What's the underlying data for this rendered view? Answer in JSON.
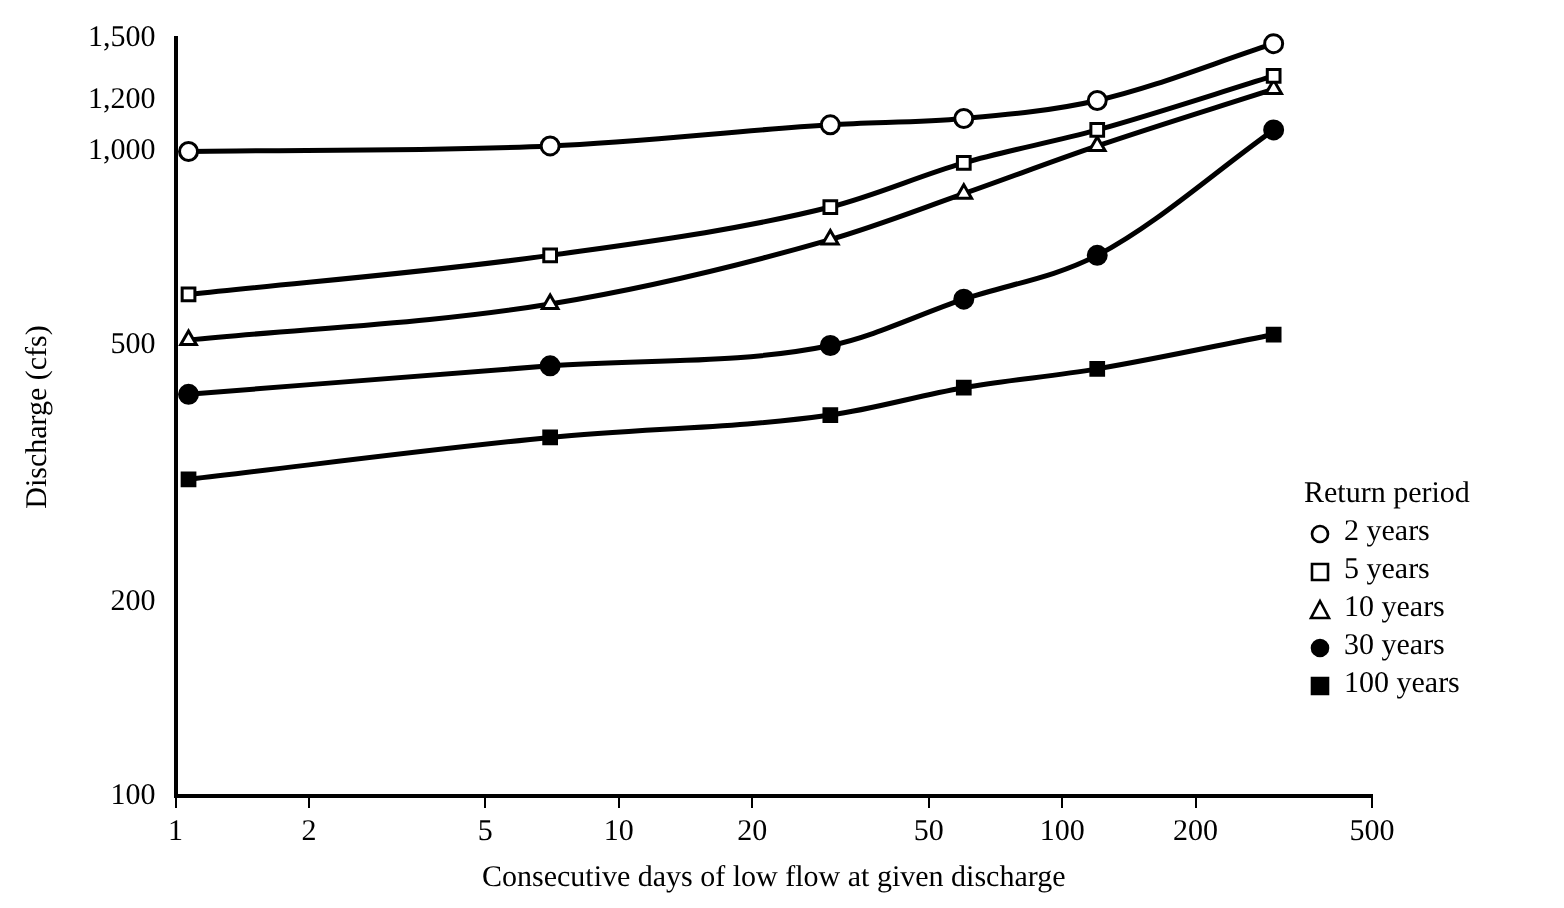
{
  "chart_data": {
    "type": "line",
    "xlabel": "Consecutive days of low flow at given discharge",
    "ylabel": "Discharge (cfs)",
    "legend_title": "Return period",
    "x": [
      1.07,
      7,
      30,
      60,
      120,
      300
    ],
    "series": [
      {
        "name": "2 years",
        "color": "#000000",
        "marker": "circle",
        "values": [
          1000,
          1020,
          1100,
          1125,
          1200,
          1470
        ]
      },
      {
        "name": "5 years",
        "color": "#000000",
        "marker": "square",
        "values": [
          600,
          690,
          820,
          960,
          1080,
          1310
        ]
      },
      {
        "name": "10 years",
        "color": "#000000",
        "marker": "triangle",
        "values": [
          510,
          580,
          730,
          860,
          1020,
          1250
        ]
      },
      {
        "name": "30 years",
        "color": "#000000",
        "marker": "circle",
        "values": [
          420,
          465,
          500,
          590,
          690,
          1080
        ]
      },
      {
        "name": "100 years",
        "color": "#000000",
        "marker": "square",
        "values": [
          310,
          360,
          390,
          430,
          460,
          520
        ]
      }
    ],
    "log": "xy",
    "xlim": [
      1,
      500
    ],
    "xticks": [
      1,
      2,
      5,
      10,
      20,
      50,
      100,
      200,
      500
    ],
    "ylim": [
      100,
      1500
    ],
    "yticks": [
      100,
      200,
      500,
      {
        "value": 1000,
        "label": "1,000"
      },
      {
        "value": 1200,
        "label": "1,200"
      },
      {
        "value": 1500,
        "label": "1,500"
      }
    ],
    "grid": false,
    "legend": "right",
    "line_style": "solid"
  }
}
